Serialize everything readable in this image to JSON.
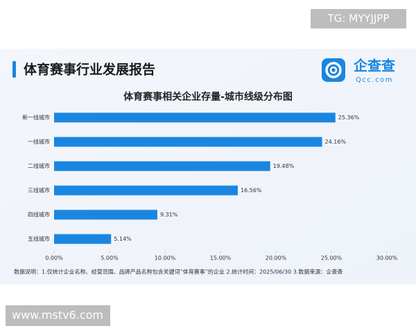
{
  "watermark_top": "TG: MYYJJPP",
  "watermark_bottom": "www.mstv6.com",
  "header": {
    "title": "体育赛事行业发展报告",
    "logo_name": "企查查",
    "logo_url": "Qcc.com"
  },
  "footnote": "数据说明：1.仅统计企业名称、经营范围、品牌产品名称包含关键词“体育赛事”的企业  2.统计时间：2025/06/30  3.数据来源：企查查",
  "chart_data": {
    "type": "bar",
    "orientation": "horizontal",
    "title": "体育赛事相关企业存量-城市线级分布图",
    "categories": [
      "新一线城市",
      "一线城市",
      "二线城市",
      "三线城市",
      "四线城市",
      "五线城市"
    ],
    "values": [
      25.36,
      24.16,
      19.48,
      16.56,
      9.31,
      5.14
    ],
    "value_labels": [
      "25.36%",
      "24.16%",
      "19.48%",
      "16.56%",
      "9.31%",
      "5.14%"
    ],
    "color": "#1a86e0",
    "xlim": [
      0,
      30
    ],
    "xticks": [
      {
        "value": 0,
        "label": "0.00%"
      },
      {
        "value": 5,
        "label": "5.00%"
      },
      {
        "value": 10,
        "label": "10.00%"
      },
      {
        "value": 15,
        "label": "15.00%"
      },
      {
        "value": 20,
        "label": "20.00%"
      },
      {
        "value": 25,
        "label": "25.00%"
      },
      {
        "value": 30,
        "label": "30.00%"
      }
    ],
    "grid": false
  }
}
